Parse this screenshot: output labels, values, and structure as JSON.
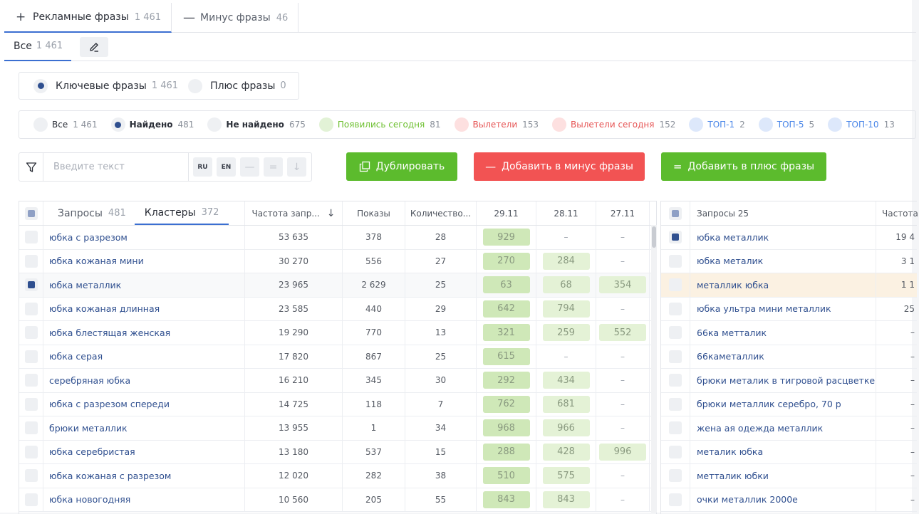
{
  "top_tabs": [
    {
      "icon": "+",
      "label": "Рекламные фразы",
      "count": "1 461"
    },
    {
      "icon": "—",
      "label": "Минус фразы",
      "count": "46"
    }
  ],
  "sub_tabs": [
    {
      "label": "Все",
      "count": "1 461"
    }
  ],
  "phrase_type": [
    {
      "label": "Ключевые фразы",
      "count": "1 461",
      "selected": true
    },
    {
      "label": "Плюс фразы",
      "count": "0",
      "selected": false
    }
  ],
  "filters": [
    {
      "label": "Все",
      "count": "1 461",
      "style": "plain"
    },
    {
      "label": "Найдено",
      "count": "481",
      "style": "selected"
    },
    {
      "label": "Не найдено",
      "count": "675",
      "style": "bold"
    },
    {
      "label": "Появились сегодня",
      "count": "81",
      "style": "green"
    },
    {
      "label": "Вылетели",
      "count": "153",
      "style": "red"
    },
    {
      "label": "Вылетели сегодня",
      "count": "152",
      "style": "red"
    },
    {
      "label": "ТОП-1",
      "count": "2",
      "style": "blue"
    },
    {
      "label": "ТОП-5",
      "count": "5",
      "style": "blue"
    },
    {
      "label": "ТОП-10",
      "count": "13",
      "style": "blue"
    }
  ],
  "search": {
    "placeholder": "Введите текст",
    "value": "",
    "lang_ru": "RU",
    "lang_en": "EN"
  },
  "actions": {
    "duplicate": "Дублировать",
    "add_minus": "Добавить в минус фразы",
    "add_plus": "Добавить в плюс фразы"
  },
  "table": {
    "tab_requests": {
      "label": "Запросы",
      "count": "481"
    },
    "tab_clusters": {
      "label": "Кластеры",
      "count": "372"
    },
    "columns": [
      "Частота запр...",
      "Показы",
      "Количество...",
      "29.11",
      "28.11",
      "27.11"
    ],
    "rows": [
      {
        "name": "юбка с разрезом",
        "freq": "53 635",
        "shows": "378",
        "qty": "28",
        "d1": "929",
        "d2": "–",
        "d3": "–",
        "checked": false
      },
      {
        "name": "юбка кожаная мини",
        "freq": "30 270",
        "shows": "556",
        "qty": "27",
        "d1": "270",
        "d2": "284",
        "d3": "–",
        "checked": false
      },
      {
        "name": "юбка металлик",
        "freq": "23 965",
        "shows": "2 629",
        "qty": "25",
        "d1": "63",
        "d2": "68",
        "d3": "354",
        "checked": true
      },
      {
        "name": "юбка кожаная длинная",
        "freq": "23 585",
        "shows": "440",
        "qty": "29",
        "d1": "642",
        "d2": "794",
        "d3": "–",
        "checked": false
      },
      {
        "name": "юбка блестящая женская",
        "freq": "19 290",
        "shows": "770",
        "qty": "13",
        "d1": "321",
        "d2": "259",
        "d3": "552",
        "checked": false
      },
      {
        "name": "юбка серая",
        "freq": "17 820",
        "shows": "867",
        "qty": "25",
        "d1": "615",
        "d2": "–",
        "d3": "–",
        "checked": false
      },
      {
        "name": "серебряная юбка",
        "freq": "16 210",
        "shows": "345",
        "qty": "30",
        "d1": "292",
        "d2": "434",
        "d3": "–",
        "checked": false
      },
      {
        "name": "юбка с разрезом спереди",
        "freq": "14 725",
        "shows": "118",
        "qty": "7",
        "d1": "762",
        "d2": "681",
        "d3": "–",
        "checked": false
      },
      {
        "name": "брюки металлик",
        "freq": "13 955",
        "shows": "1",
        "qty": "34",
        "d1": "968",
        "d2": "966",
        "d3": "–",
        "checked": false
      },
      {
        "name": "юбка серебристая",
        "freq": "13 180",
        "shows": "537",
        "qty": "15",
        "d1": "288",
        "d2": "428",
        "d3": "996",
        "checked": false
      },
      {
        "name": "юбка кожаная с разрезом",
        "freq": "12 020",
        "shows": "282",
        "qty": "38",
        "d1": "510",
        "d2": "575",
        "d3": "–",
        "checked": false
      },
      {
        "name": "юбка новогодняя",
        "freq": "10 560",
        "shows": "205",
        "qty": "55",
        "d1": "843",
        "d2": "843",
        "d3": "–",
        "checked": false
      }
    ]
  },
  "right_table": {
    "header_requests": "Запросы 25",
    "header_freq": "Частота",
    "rows": [
      {
        "query": "юбка металлик",
        "freq": "19 4",
        "checked": true
      },
      {
        "query": "юбка металик",
        "freq": "3 1",
        "checked": false
      },
      {
        "query": "металлик юбка",
        "freq": "1 1",
        "checked": false,
        "highlight": true
      },
      {
        "query": "юбка ультра мини металлик",
        "freq": "25",
        "checked": false
      },
      {
        "query": "66ка метталик",
        "freq": "–",
        "checked": false
      },
      {
        "query": "66каметаллик",
        "freq": "–",
        "checked": false
      },
      {
        "query": "брюки металик в тигровой расцветке",
        "freq": "–",
        "checked": false
      },
      {
        "query": "брюки металлик серебро, 70 р",
        "freq": "–",
        "checked": false
      },
      {
        "query": "жена ая одежда металлик",
        "freq": "–",
        "checked": false
      },
      {
        "query": "металик юбка",
        "freq": "–",
        "checked": false
      },
      {
        "query": "метталик юбки",
        "freq": "–",
        "checked": false
      },
      {
        "query": "очки металлик 2000е",
        "freq": "–",
        "checked": false
      }
    ]
  },
  "colors": {
    "accent": "#3b6fd1",
    "green_button": "#5cbb2d",
    "red_button": "#f25353",
    "checked": "#2f4f8f"
  }
}
